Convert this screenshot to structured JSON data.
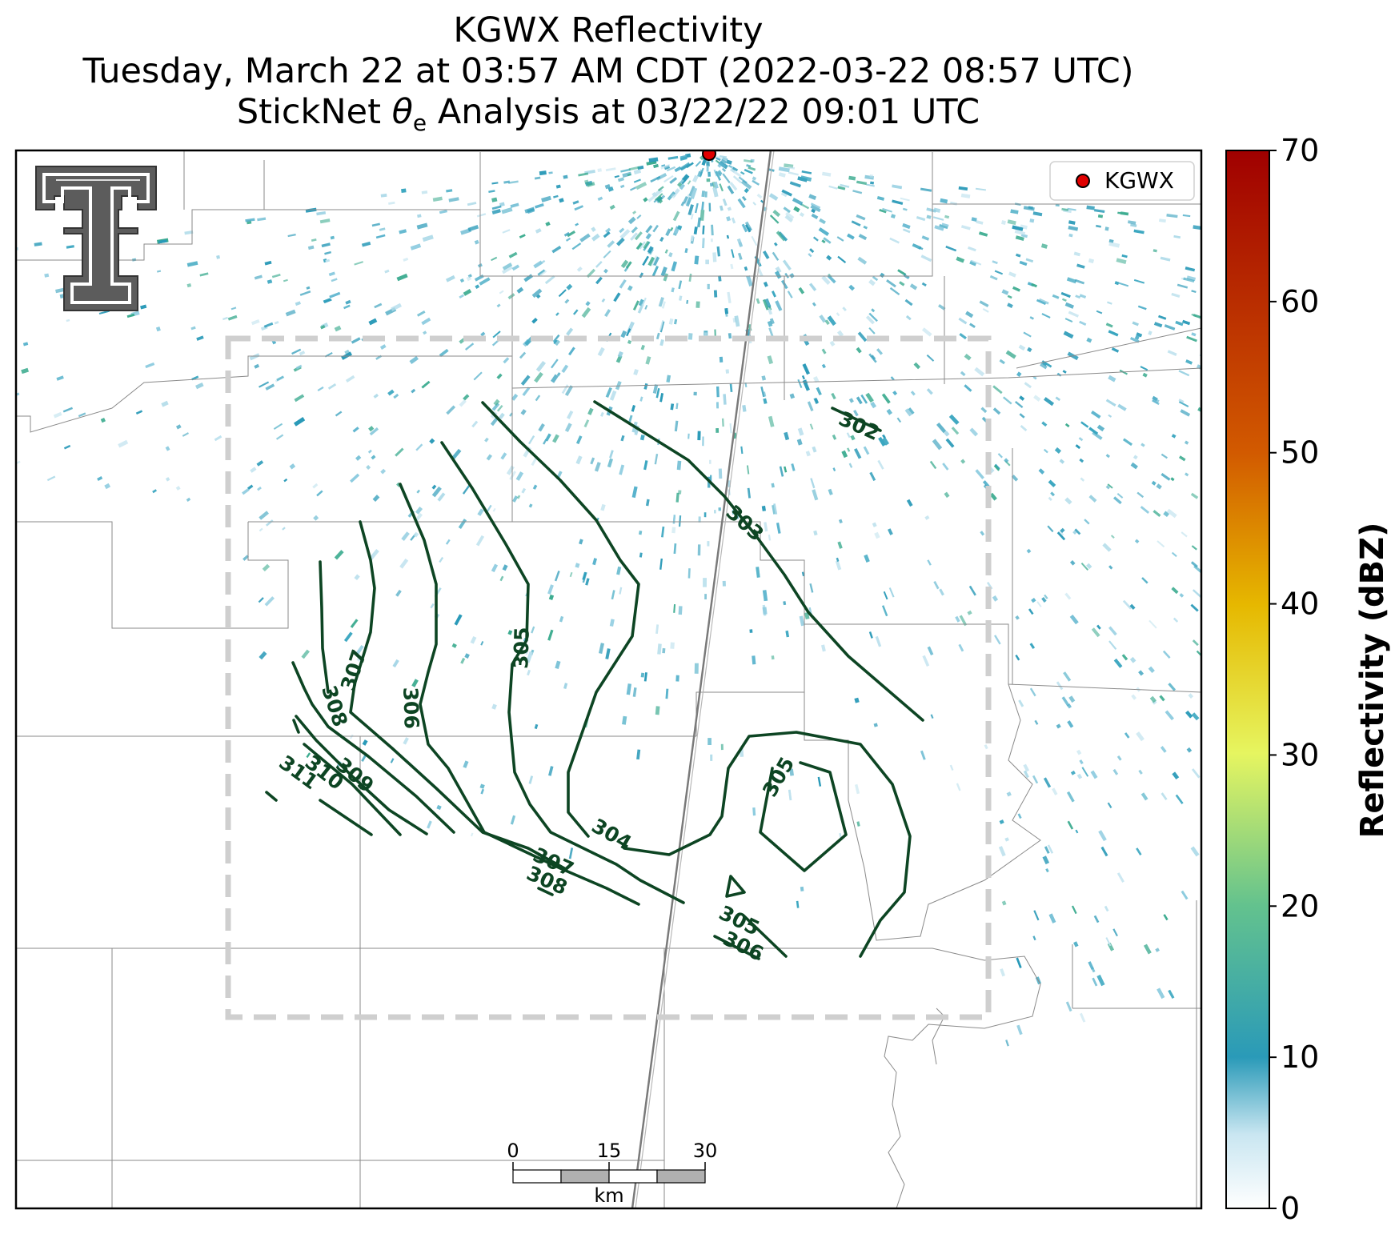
{
  "title": {
    "line1": "KGWX Reflectivity",
    "line2": "Tuesday, March 22 at 03:57 AM CDT (2022-03-22 08:57 UTC)",
    "line3_pre": "StickNet ",
    "line3_symbol": "θ",
    "line3_sub": "e",
    "line3_post": " Analysis at 03/22/22 09:01 UTC"
  },
  "legend": {
    "label": "KGWX",
    "marker_color": "#e00000"
  },
  "colorbar": {
    "label": "Reflectivity (dBZ)",
    "ticks": [
      "0",
      "10",
      "20",
      "30",
      "40",
      "50",
      "60",
      "70"
    ],
    "min": 0,
    "max": 70,
    "colors": [
      "#ffffff",
      "#c9e6f1",
      "#2a9ab8",
      "#63c28e",
      "#e6f560",
      "#e6b800",
      "#d25a00",
      "#a00000"
    ]
  },
  "scalebar": {
    "ticks": [
      "0",
      "15",
      "30"
    ],
    "unit": "km"
  },
  "contours": [
    {
      "value": "302",
      "labels": [
        "302"
      ]
    },
    {
      "value": "303",
      "labels": [
        "303"
      ]
    },
    {
      "value": "304",
      "labels": [
        "304"
      ]
    },
    {
      "value": "305",
      "labels": [
        "305",
        "305",
        "305"
      ]
    },
    {
      "value": "306",
      "labels": [
        "306",
        "306"
      ]
    },
    {
      "value": "307",
      "labels": [
        "307",
        "307"
      ]
    },
    {
      "value": "308",
      "labels": [
        "308",
        "308"
      ]
    },
    {
      "value": "309",
      "labels": [
        "309"
      ]
    },
    {
      "value": "310",
      "labels": [
        "310"
      ]
    },
    {
      "value": "311",
      "labels": [
        "311"
      ]
    }
  ],
  "logo": {
    "text": "T"
  }
}
